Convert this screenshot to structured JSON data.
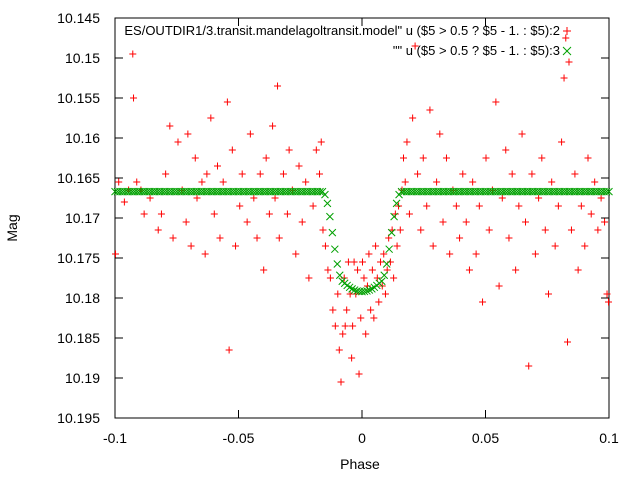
{
  "chart_data": {
    "type": "scatter",
    "xlabel": "Phase",
    "ylabel": "Mag",
    "xlim": [
      -0.1,
      0.1
    ],
    "ylim": [
      10.195,
      10.145
    ],
    "y_axis_inverted": true,
    "grid": false,
    "legend_position": "top-right",
    "x_ticks": [
      {
        "value": -0.1,
        "label": "-0.1"
      },
      {
        "value": -0.05,
        "label": "-0.05"
      },
      {
        "value": 0,
        "label": "0"
      },
      {
        "value": 0.05,
        "label": "0.05"
      },
      {
        "value": 0.1,
        "label": "0.1"
      }
    ],
    "y_ticks": [
      {
        "value": 10.145,
        "label": "10.145"
      },
      {
        "value": 10.15,
        "label": "10.15"
      },
      {
        "value": 10.155,
        "label": "10.155"
      },
      {
        "value": 10.16,
        "label": "10.16"
      },
      {
        "value": 10.165,
        "label": "10.165"
      },
      {
        "value": 10.17,
        "label": "10.17"
      },
      {
        "value": 10.175,
        "label": "10.175"
      },
      {
        "value": 10.18,
        "label": "10.18"
      },
      {
        "value": 10.185,
        "label": "10.185"
      },
      {
        "value": 10.19,
        "label": "10.19"
      },
      {
        "value": 10.195,
        "label": "10.195"
      }
    ],
    "series": [
      {
        "name": "ES/OUTDIR1/3.transit.mandelagoltransit.model\" u ($5 > 0.5 ? $5 - 1. : $5):2",
        "marker": "plus",
        "color": "#ff0000",
        "points": [
          [
            -0.0998,
            10.1745
          ],
          [
            -0.0985,
            10.1655
          ],
          [
            -0.0962,
            10.168
          ],
          [
            -0.0945,
            10.1665
          ],
          [
            -0.0928,
            10.1495
          ],
          [
            -0.0925,
            10.155
          ],
          [
            -0.0912,
            10.1655
          ],
          [
            -0.0895,
            10.1665
          ],
          [
            -0.0882,
            10.1695
          ],
          [
            -0.0858,
            10.1675
          ],
          [
            -0.0825,
            10.1715
          ],
          [
            -0.0812,
            10.1695
          ],
          [
            -0.0795,
            10.1645
          ],
          [
            -0.0778,
            10.1585
          ],
          [
            -0.0765,
            10.1725
          ],
          [
            -0.0745,
            10.1605
          ],
          [
            -0.0728,
            10.1665
          ],
          [
            -0.0712,
            10.1705
          ],
          [
            -0.0705,
            10.1595
          ],
          [
            -0.0692,
            10.1735
          ],
          [
            -0.0675,
            10.1625
          ],
          [
            -0.0668,
            10.1675
          ],
          [
            -0.0648,
            10.1655
          ],
          [
            -0.0635,
            10.1745
          ],
          [
            -0.0628,
            10.1645
          ],
          [
            -0.0612,
            10.1575
          ],
          [
            -0.0598,
            10.1695
          ],
          [
            -0.0585,
            10.1635
          ],
          [
            -0.0575,
            10.1725
          ],
          [
            -0.0562,
            10.1655
          ],
          [
            -0.0545,
            10.1555
          ],
          [
            -0.0538,
            10.1865
          ],
          [
            -0.0525,
            10.1615
          ],
          [
            -0.0512,
            10.1735
          ],
          [
            -0.0495,
            10.1685
          ],
          [
            -0.0485,
            10.1645
          ],
          [
            -0.0465,
            10.1705
          ],
          [
            -0.0452,
            10.1595
          ],
          [
            -0.0438,
            10.1675
          ],
          [
            -0.0425,
            10.1725
          ],
          [
            -0.0412,
            10.1645
          ],
          [
            -0.0398,
            10.1765
          ],
          [
            -0.0388,
            10.1625
          ],
          [
            -0.0375,
            10.1695
          ],
          [
            -0.0362,
            10.1585
          ],
          [
            -0.0352,
            10.1675
          ],
          [
            -0.0342,
            10.1535
          ],
          [
            -0.0335,
            10.1725
          ],
          [
            -0.0318,
            10.1645
          ],
          [
            -0.0302,
            10.1695
          ],
          [
            -0.0295,
            10.1615
          ],
          [
            -0.0282,
            10.1665
          ],
          [
            -0.0268,
            10.1745
          ],
          [
            -0.0255,
            10.1635
          ],
          [
            -0.0242,
            10.1705
          ],
          [
            -0.0228,
            10.1655
          ],
          [
            -0.0215,
            10.1775
          ],
          [
            -0.0198,
            10.1685
          ],
          [
            -0.0185,
            10.1615
          ],
          [
            -0.0172,
            10.1645
          ],
          [
            -0.0165,
            10.1605
          ],
          [
            -0.0158,
            10.1715
          ],
          [
            -0.0148,
            10.1735
          ],
          [
            -0.0138,
            10.1765
          ],
          [
            -0.0128,
            10.1775
          ],
          [
            -0.0118,
            10.1815
          ],
          [
            -0.0108,
            10.1835
          ],
          [
            -0.0098,
            10.1795
          ],
          [
            -0.0092,
            10.1865
          ],
          [
            -0.0085,
            10.1905
          ],
          [
            -0.0078,
            10.1845
          ],
          [
            -0.0072,
            10.1775
          ],
          [
            -0.0068,
            10.1835
          ],
          [
            -0.0062,
            10.1815
          ],
          [
            -0.0055,
            10.1755
          ],
          [
            -0.0048,
            10.1795
          ],
          [
            -0.0042,
            10.1875
          ],
          [
            -0.0038,
            10.1835
          ],
          [
            -0.0032,
            10.1755
          ],
          [
            -0.0025,
            10.1795
          ],
          [
            -0.0018,
            10.1765
          ],
          [
            -0.0012,
            10.1895
          ],
          [
            -0.0005,
            10.1825
          ],
          [
            0.0002,
            10.1755
          ],
          [
            0.0008,
            10.1775
          ],
          [
            0.0015,
            10.1845
          ],
          [
            0.0022,
            10.1785
          ],
          [
            0.0028,
            10.1745
          ],
          [
            0.0035,
            10.1815
          ],
          [
            0.0042,
            10.1765
          ],
          [
            0.0048,
            10.1825
          ],
          [
            0.0055,
            10.1735
          ],
          [
            0.0062,
            10.1775
          ],
          [
            0.0068,
            10.1805
          ],
          [
            0.0075,
            10.1755
          ],
          [
            0.0082,
            10.1785
          ],
          [
            0.0088,
            10.1745
          ],
          [
            0.0095,
            10.1795
          ],
          [
            0.0102,
            10.1765
          ],
          [
            0.0108,
            10.1725
          ],
          [
            0.0115,
            10.1755
          ],
          [
            0.0122,
            10.1715
          ],
          [
            0.0128,
            10.1775
          ],
          [
            0.0135,
            10.1695
          ],
          [
            0.0142,
            10.1735
          ],
          [
            0.0148,
            10.1685
          ],
          [
            0.0155,
            10.1715
          ],
          [
            0.0162,
            10.1665
          ],
          [
            0.0168,
            10.1625
          ],
          [
            0.0175,
            10.1655
          ],
          [
            0.0182,
            10.1605
          ],
          [
            0.0192,
            10.1695
          ],
          [
            0.0205,
            10.1575
          ],
          [
            0.0215,
            10.1485
          ],
          [
            0.0225,
            10.1645
          ],
          [
            0.0238,
            10.1715
          ],
          [
            0.0248,
            10.1625
          ],
          [
            0.0262,
            10.1685
          ],
          [
            0.0275,
            10.1565
          ],
          [
            0.0288,
            10.1735
          ],
          [
            0.0302,
            10.1655
          ],
          [
            0.0315,
            10.1595
          ],
          [
            0.0328,
            10.1705
          ],
          [
            0.0342,
            10.1625
          ],
          [
            0.0355,
            10.1745
          ],
          [
            0.0368,
            10.1665
          ],
          [
            0.0382,
            10.1685
          ],
          [
            0.0395,
            10.1725
          ],
          [
            0.0408,
            10.1645
          ],
          [
            0.0422,
            10.1705
          ],
          [
            0.0435,
            10.1765
          ],
          [
            0.0448,
            10.1655
          ],
          [
            0.0462,
            10.1745
          ],
          [
            0.0475,
            10.1685
          ],
          [
            0.0488,
            10.1805
          ],
          [
            0.0502,
            10.1625
          ],
          [
            0.0515,
            10.1715
          ],
          [
            0.0528,
            10.1665
          ],
          [
            0.0542,
            10.1555
          ],
          [
            0.0555,
            10.1785
          ],
          [
            0.0568,
            10.1675
          ],
          [
            0.0582,
            10.1615
          ],
          [
            0.0595,
            10.1725
          ],
          [
            0.0608,
            10.1645
          ],
          [
            0.0622,
            10.1765
          ],
          [
            0.0635,
            10.1685
          ],
          [
            0.0648,
            10.1595
          ],
          [
            0.0662,
            10.1705
          ],
          [
            0.0675,
            10.1885
          ],
          [
            0.0688,
            10.1645
          ],
          [
            0.0702,
            10.1745
          ],
          [
            0.0715,
            10.1675
          ],
          [
            0.0728,
            10.1625
          ],
          [
            0.0742,
            10.1715
          ],
          [
            0.0755,
            10.1795
          ],
          [
            0.0768,
            10.1655
          ],
          [
            0.0782,
            10.1735
          ],
          [
            0.0795,
            10.1685
          ],
          [
            0.0808,
            10.1605
          ],
          [
            0.0818,
            10.1525
          ],
          [
            0.0825,
            10.1475
          ],
          [
            0.0832,
            10.1855
          ],
          [
            0.0838,
            10.1505
          ],
          [
            0.0848,
            10.1715
          ],
          [
            0.0862,
            10.1645
          ],
          [
            0.0875,
            10.1765
          ],
          [
            0.0888,
            10.1685
          ],
          [
            0.0902,
            10.1735
          ],
          [
            0.0915,
            10.1625
          ],
          [
            0.0928,
            10.1695
          ],
          [
            0.0942,
            10.1655
          ],
          [
            0.0955,
            10.1715
          ],
          [
            0.0968,
            10.1675
          ],
          [
            0.0982,
            10.1705
          ],
          [
            0.0992,
            10.1795
          ],
          [
            0.0998,
            10.1805
          ]
        ]
      },
      {
        "name": "\"\" u ($5 > 0.5 ? $5 - 1. : $5):3",
        "marker": "x",
        "color": "#00a000",
        "model": {
          "baseline": 10.1667,
          "depth": 0.0125,
          "flat_half_width": 0.0075,
          "ingress_start": 0.016,
          "x_from": -0.1,
          "x_to": 0.1,
          "step": 0.001
        }
      }
    ]
  }
}
